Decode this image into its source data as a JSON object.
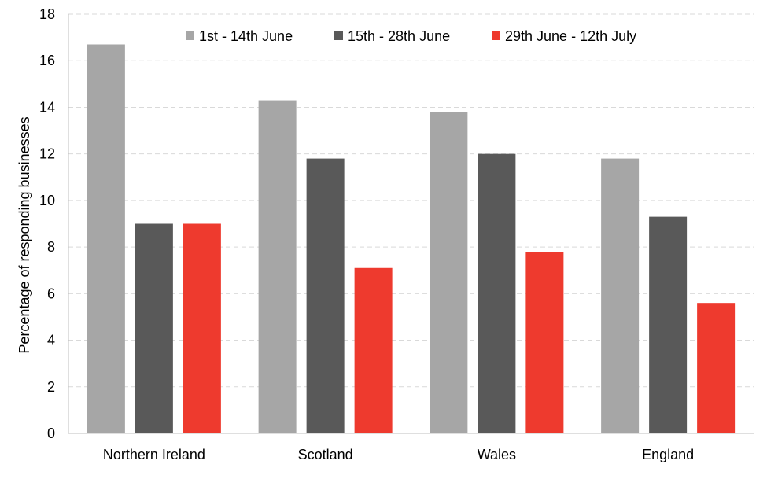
{
  "chart_data": {
    "type": "bar",
    "categories": [
      "Northern Ireland",
      "Scotland",
      "Wales",
      "England"
    ],
    "series": [
      {
        "name": "1st - 14th June",
        "color": "#a6a6a6",
        "values": [
          16.7,
          14.3,
          13.8,
          11.8
        ]
      },
      {
        "name": "15th - 28th June",
        "color": "#595959",
        "values": [
          9.0,
          11.8,
          12.0,
          9.3
        ]
      },
      {
        "name": "29th June - 12th July",
        "color": "#ee3a2e",
        "values": [
          9.0,
          7.1,
          7.8,
          5.6
        ]
      }
    ],
    "xlabel": "",
    "ylabel": "Percentage of responding businesses",
    "ylim": [
      0,
      18
    ],
    "yticks": [
      0,
      2,
      4,
      6,
      8,
      10,
      12,
      14,
      16,
      18
    ],
    "grid": true,
    "legend_position": "top"
  }
}
